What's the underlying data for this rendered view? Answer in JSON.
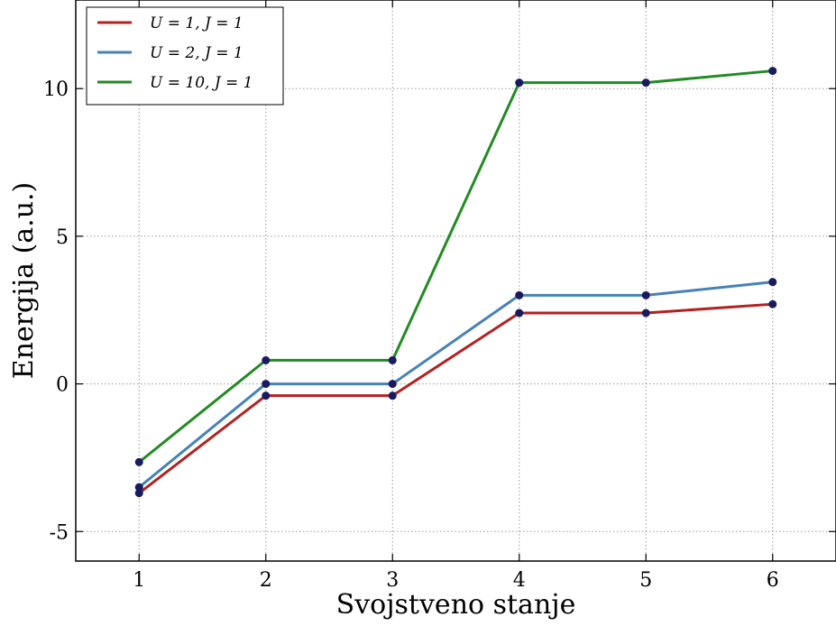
{
  "chart_data": {
    "type": "line",
    "xlabel": "Svojstveno stanje",
    "ylabel": "Energija (a.u.)",
    "x": [
      1,
      2,
      3,
      4,
      5,
      6
    ],
    "xlim": [
      0.5,
      6.5
    ],
    "ylim": [
      -6,
      13
    ],
    "xticks": [
      "1",
      "2",
      "3",
      "4",
      "5",
      "6"
    ],
    "yticks": [
      -5,
      0,
      5,
      10
    ],
    "ytick_labels": [
      "-5",
      "0",
      "5",
      "10"
    ],
    "grid": true,
    "legend_position": "top-left",
    "marker_color": "#1a1a5e",
    "series": [
      {
        "name": "U = 1,  J = 1",
        "color": "#b22222",
        "values": [
          -3.7,
          -0.4,
          -0.4,
          2.4,
          2.4,
          2.7
        ]
      },
      {
        "name": "U = 2,  J = 1",
        "color": "#4682b4",
        "values": [
          -3.5,
          0.0,
          0.0,
          3.0,
          3.0,
          3.45
        ]
      },
      {
        "name": "U = 10,  J = 1",
        "color": "#228b22",
        "values": [
          -2.65,
          0.8,
          0.8,
          10.2,
          10.2,
          10.6
        ]
      }
    ]
  }
}
